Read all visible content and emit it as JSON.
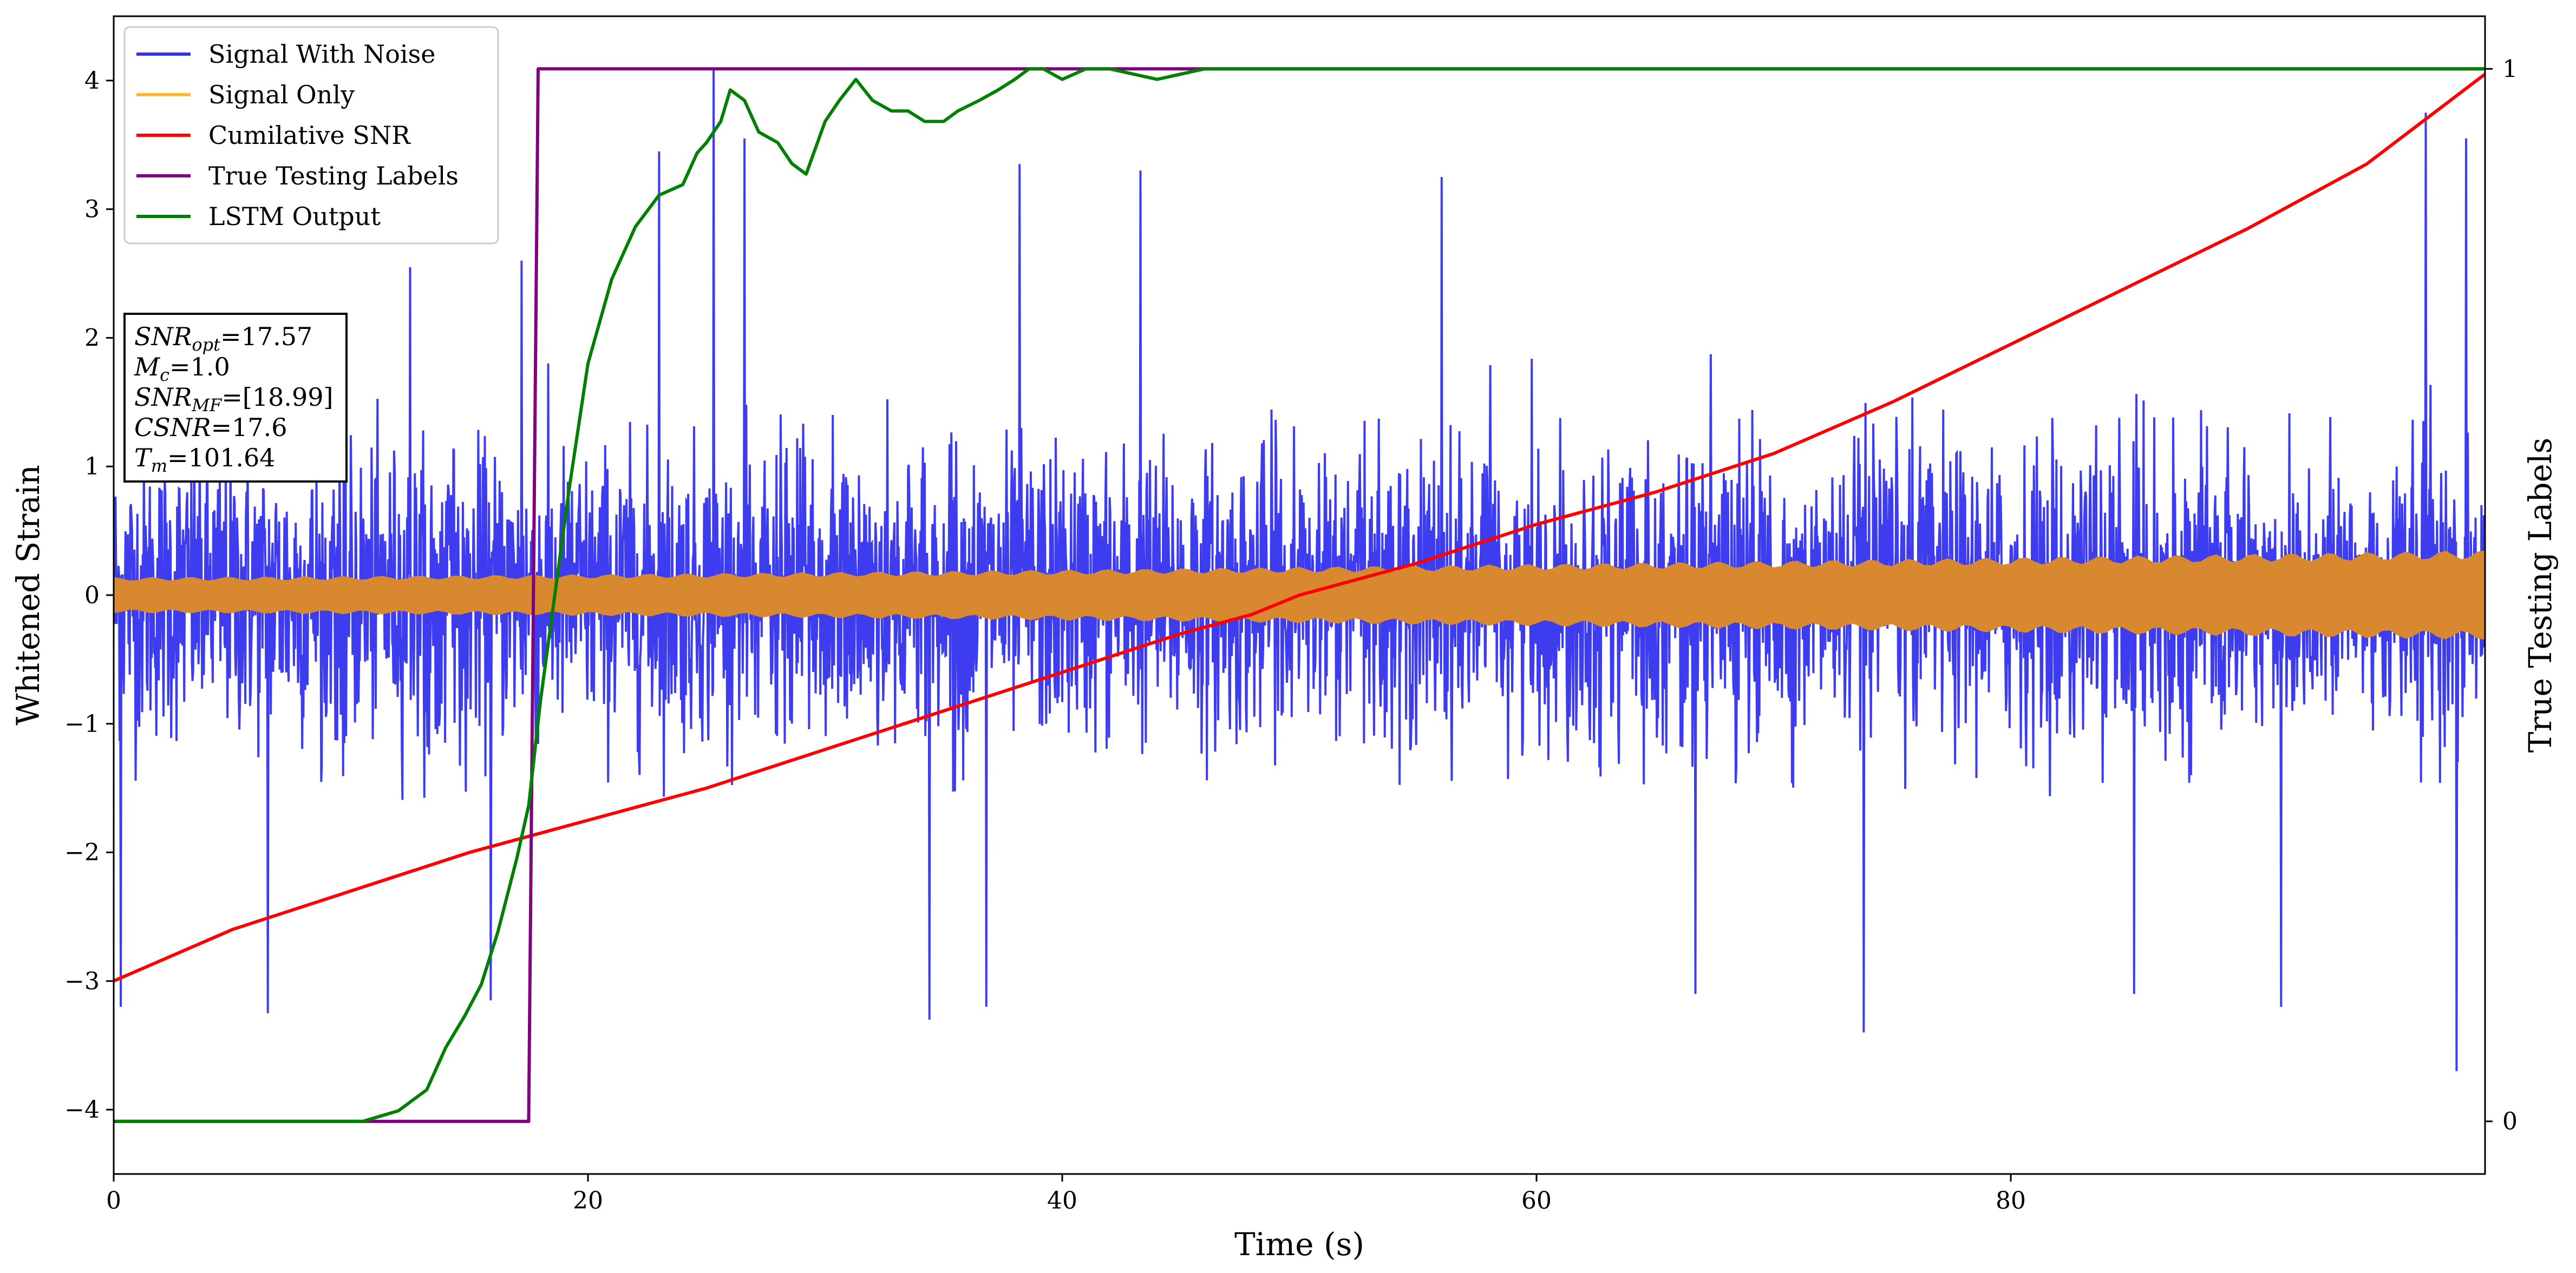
{
  "chart_data": {
    "type": "line",
    "xlabel": "Time (s)",
    "ylabel": "Whitened Strain",
    "y2label": "True Testing Labels",
    "xlim": [
      0,
      100
    ],
    "ylim": [
      -4.5,
      4.5
    ],
    "y2lim": [
      -0.05,
      1.05
    ],
    "x_ticks": [
      0,
      20,
      40,
      60,
      80
    ],
    "y_ticks": [
      -4,
      -3,
      -2,
      -1,
      0,
      1,
      2,
      3,
      4
    ],
    "y2_ticks": [
      0,
      1
    ],
    "grid": false,
    "legend_position": "top-left",
    "series": [
      {
        "name": "Signal With Noise",
        "color": "#3333ee",
        "axis": "left",
        "kind": "noise",
        "typical_envelope": [
          -1.6,
          1.9
        ],
        "peak_values": [
          {
            "x": 0.3,
            "y": -3.2
          },
          {
            "x": 6.5,
            "y": -3.25
          },
          {
            "x": 12.5,
            "y": 2.55
          },
          {
            "x": 15.9,
            "y": -3.15
          },
          {
            "x": 17.2,
            "y": 2.6
          },
          {
            "x": 23,
            "y": 3.45
          },
          {
            "x": 25.3,
            "y": 4.1
          },
          {
            "x": 26.6,
            "y": 3.55
          },
          {
            "x": 34.4,
            "y": -3.3
          },
          {
            "x": 36.8,
            "y": -3.2
          },
          {
            "x": 38.2,
            "y": 3.35
          },
          {
            "x": 43.3,
            "y": 3.3
          },
          {
            "x": 56,
            "y": 3.25
          },
          {
            "x": 66.7,
            "y": -3.1
          },
          {
            "x": 73.8,
            "y": -3.4
          },
          {
            "x": 85.2,
            "y": -3.1
          },
          {
            "x": 91.4,
            "y": -3.2
          },
          {
            "x": 97.5,
            "y": 3.75
          },
          {
            "x": 98.8,
            "y": -3.7
          },
          {
            "x": 99.2,
            "y": 3.55
          }
        ]
      },
      {
        "name": "Signal Only",
        "color": "#ffb733",
        "axis": "left",
        "kind": "band",
        "amplitude_start": 0.14,
        "amplitude_end": 0.35
      },
      {
        "name": "Cumilative SNR",
        "color": "#ff0000",
        "axis": "left",
        "x": [
          0,
          5,
          10,
          15,
          20,
          25,
          30,
          35,
          40,
          45,
          48,
          50,
          55,
          60,
          65,
          70,
          75,
          80,
          85,
          90,
          95,
          100
        ],
        "y": [
          -3.0,
          -2.6,
          -2.3,
          -2.0,
          -1.75,
          -1.5,
          -1.2,
          -0.9,
          -0.6,
          -0.3,
          -0.15,
          0.0,
          0.25,
          0.55,
          0.8,
          1.1,
          1.5,
          1.95,
          2.4,
          2.85,
          3.35,
          4.05
        ]
      },
      {
        "name": "True Testing Labels",
        "color": "#800080",
        "axis": "right",
        "x": [
          0,
          17.5,
          17.9,
          100
        ],
        "y": [
          0,
          0,
          1,
          1
        ]
      },
      {
        "name": "LSTM Output",
        "color": "#008000",
        "axis": "right",
        "x": [
          0,
          10.5,
          12,
          13.2,
          14,
          14.8,
          15.5,
          16.2,
          17,
          17.5,
          18,
          18.6,
          19.2,
          20,
          21,
          22,
          23,
          24,
          24.6,
          25,
          25.6,
          26,
          26.6,
          27.2,
          28,
          28.6,
          29.2,
          30,
          30.6,
          31.3,
          32,
          32.8,
          33.5,
          34.2,
          35,
          35.6,
          36.5,
          37.3,
          38,
          38.6,
          39.2,
          40,
          41,
          42,
          44,
          46,
          48,
          50,
          53,
          57,
          60,
          70,
          80,
          90,
          100
        ],
        "y": [
          0,
          0,
          0.01,
          0.03,
          0.07,
          0.1,
          0.13,
          0.18,
          0.25,
          0.3,
          0.4,
          0.5,
          0.6,
          0.72,
          0.8,
          0.85,
          0.88,
          0.89,
          0.92,
          0.93,
          0.95,
          0.98,
          0.97,
          0.94,
          0.93,
          0.91,
          0.9,
          0.95,
          0.97,
          0.99,
          0.97,
          0.96,
          0.96,
          0.95,
          0.95,
          0.96,
          0.97,
          0.98,
          0.99,
          1.0,
          1.0,
          0.99,
          1.0,
          1.0,
          0.99,
          1.0,
          1.0,
          1.0,
          1.0,
          1.0,
          1.0,
          1.0,
          1.0,
          1.0,
          1.0
        ]
      }
    ],
    "annotation": [
      {
        "var": "SNR",
        "sub": "opt",
        "value": "17.57"
      },
      {
        "var": "M",
        "sub": "c",
        "value": "1.0"
      },
      {
        "var": "SNR",
        "sub": "MF",
        "value": "[18.99]"
      },
      {
        "var": "CSNR",
        "sub": "",
        "value": "17.6"
      },
      {
        "var": "T",
        "sub": "m",
        "value": "101.64"
      }
    ]
  }
}
